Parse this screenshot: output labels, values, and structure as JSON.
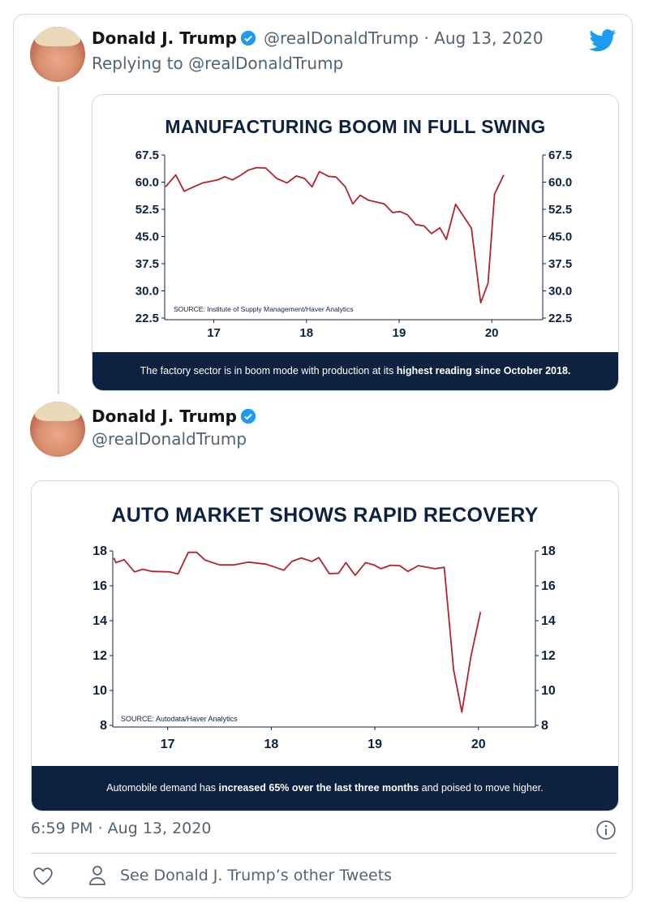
{
  "tweet1": {
    "name": "Donald J. Trump",
    "handle_date": "@realDonaldTrump · Aug 13, 2020",
    "replying_prefix": "Replying to ",
    "replying_handle": "@realDonaldTrump"
  },
  "tweet2": {
    "name": "Donald J. Trump",
    "handle": "@realDonaldTrump",
    "timestamp": "6:59 PM · Aug 13, 2020"
  },
  "footer": {
    "other_tweets_label": "See Donald J. Trump’s other Tweets"
  },
  "icons": {
    "brand": "twitter-bird-icon",
    "verified": "verified-badge-icon",
    "info": "info-icon",
    "like": "heart-icon",
    "profile": "person-icon"
  },
  "colors": {
    "twitter_blue": "#1d9bf0",
    "navy": "#0d2240",
    "line_red": "#b0242e",
    "text_grey": "#536471"
  },
  "chart_data": [
    {
      "type": "line",
      "title": "MANUFACTURING BOOM IN FULL SWING",
      "source": "SOURCE: Institute of Supply Management/Haver Analytics",
      "caption_pre": "The factory sector is in boom mode with production at its ",
      "caption_bold": "highest reading since October 2018.",
      "xlim": [
        16.47,
        20.55
      ],
      "ylim": [
        22.5,
        67.5
      ],
      "xticks": [
        "17",
        "18",
        "19",
        "20"
      ],
      "yticks": [
        "67.5",
        "60.0",
        "52.5",
        "45.0",
        "37.5",
        "30.0",
        "22.5"
      ],
      "dual_y_axis": true,
      "grid": false,
      "x": [
        16.48,
        16.59,
        16.68,
        16.79,
        16.88,
        17.04,
        17.12,
        17.2,
        17.29,
        17.37,
        17.46,
        17.56,
        17.68,
        17.79,
        17.89,
        17.98,
        18.06,
        18.14,
        18.24,
        18.32,
        18.42,
        18.5,
        18.58,
        18.67,
        18.84,
        18.93,
        19.01,
        19.09,
        19.18,
        19.27,
        19.35,
        19.44,
        19.51,
        19.61,
        19.78,
        19.88,
        19.96,
        20.03,
        20.13
      ],
      "y": [
        58.7,
        62.0,
        57.5,
        58.8,
        59.8,
        60.6,
        61.5,
        60.6,
        61.9,
        63.3,
        64.0,
        63.9,
        61.0,
        59.8,
        61.7,
        61.0,
        58.7,
        62.9,
        61.6,
        61.4,
        58.7,
        54.0,
        56.4,
        55.0,
        54.0,
        51.6,
        51.9,
        51.0,
        48.3,
        47.9,
        45.8,
        47.4,
        44.2,
        53.9,
        47.3,
        26.7,
        32.1,
        56.7,
        62.0
      ]
    },
    {
      "type": "line",
      "title": "AUTO MARKET SHOWS RAPID RECOVERY",
      "source": "SOURCE: Autodata/Haver Analytics",
      "caption_pre": "Automobile demand has ",
      "caption_bold": "increased 65% over the last three months",
      "caption_post": " and poised to move higher.",
      "xlim": [
        16.47,
        20.55
      ],
      "ylim": [
        8,
        18
      ],
      "xticks": [
        "17",
        "18",
        "19",
        "20"
      ],
      "yticks": [
        "18",
        "16",
        "14",
        "12",
        "10",
        "8"
      ],
      "dual_y_axis": true,
      "grid": false,
      "x": [
        16.48,
        16.5,
        16.58,
        16.68,
        16.76,
        16.85,
        17.02,
        17.1,
        17.2,
        17.28,
        17.36,
        17.5,
        17.64,
        17.78,
        17.95,
        18.12,
        18.2,
        18.29,
        18.39,
        18.46,
        18.56,
        18.65,
        18.72,
        18.81,
        18.91,
        18.99,
        19.06,
        19.15,
        19.24,
        19.32,
        19.42,
        19.58,
        19.67,
        19.76,
        19.84,
        19.93,
        20.02
      ],
      "y": [
        17.6,
        17.33,
        17.5,
        16.8,
        16.95,
        16.83,
        16.8,
        16.68,
        17.92,
        17.92,
        17.48,
        17.2,
        17.2,
        17.36,
        17.24,
        16.9,
        17.4,
        17.6,
        17.4,
        17.62,
        16.7,
        16.72,
        17.33,
        16.6,
        17.33,
        17.2,
        16.98,
        17.18,
        17.16,
        16.83,
        17.16,
        16.98,
        17.06,
        11.2,
        8.76,
        12.03,
        14.5
      ]
    }
  ]
}
